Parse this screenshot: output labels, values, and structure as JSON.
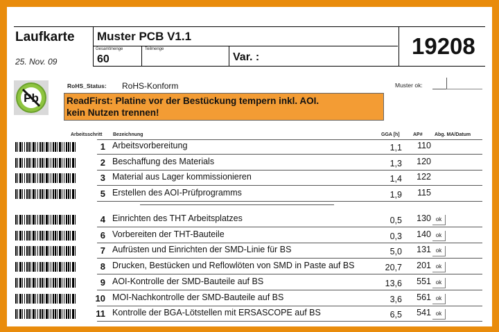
{
  "header": {
    "title": "Laufkarte",
    "date": "25. Nov. 09",
    "product": "Muster PCB V1.1",
    "gesamtmenge_label": "Gesamtmenge",
    "gesamtmenge_value": "60",
    "teilmenge_label": "Teilmenge",
    "teilmenge_value": "",
    "var_label": "Var. :",
    "order_number": "19208"
  },
  "rohs": {
    "label": "RoHS_Status:",
    "value": "RoHS-Konform",
    "icon": "no-lead-pb-icon"
  },
  "muster_ok_label": "Muster ok:",
  "notice": {
    "text_line1": "ReadFirst: Platine vor der Bestückung tempern inkl. AOI.",
    "text_line2": "kein Nutzen trennen!",
    "color": "#f39c34"
  },
  "columns": {
    "step": "Arbeitsschritt",
    "description": "Bezeichnung",
    "gga": "GGA [h]",
    "ap": "AP#",
    "signoff": "Abg. MA/Datum"
  },
  "steps": [
    {
      "num": "1",
      "desc": "Arbeitsvorbereitung",
      "gga": "1,1",
      "ap": "110",
      "ok": ""
    },
    {
      "num": "2",
      "desc": "Beschaffung des Materials",
      "gga": "1,3",
      "ap": "120",
      "ok": ""
    },
    {
      "num": "3",
      "desc": "Material aus Lager kommissionieren",
      "gga": "1,4",
      "ap": "122",
      "ok": ""
    },
    {
      "num": "5",
      "desc": "Erstellen des AOI-Prüfprogramms",
      "gga": "1,9",
      "ap": "115",
      "ok": ""
    },
    {
      "num": "4",
      "desc": "Einrichten des THT Arbeitsplatzes",
      "gga": "0,5",
      "ap": "130",
      "ok": "ok"
    },
    {
      "num": "6",
      "desc": "Vorbereiten der THT-Bauteile",
      "gga": "0,3",
      "ap": "140",
      "ok": "ok"
    },
    {
      "num": "7",
      "desc": "Aufrüsten und Einrichten der SMD-Linie für BS",
      "gga": "5,0",
      "ap": "131",
      "ok": "ok"
    },
    {
      "num": "8",
      "desc": "Drucken, Bestücken und Reflowlöten von SMD in Paste auf BS",
      "gga": "20,7",
      "ap": "201",
      "ok": "ok"
    },
    {
      "num": "9",
      "desc": "AOI-Kontrolle der SMD-Bauteile auf BS",
      "gga": "13,6",
      "ap": "551",
      "ok": "ok"
    },
    {
      "num": "10",
      "desc": "MOI-Nachkontrolle der SMD-Bauteile auf BS",
      "gga": "3,6",
      "ap": "561",
      "ok": "ok"
    },
    {
      "num": "11",
      "desc": "Kontrolle der BGA-Lötstellen mit ERSASCOPE auf BS",
      "gga": "6,5",
      "ap": "541",
      "ok": "ok"
    }
  ]
}
